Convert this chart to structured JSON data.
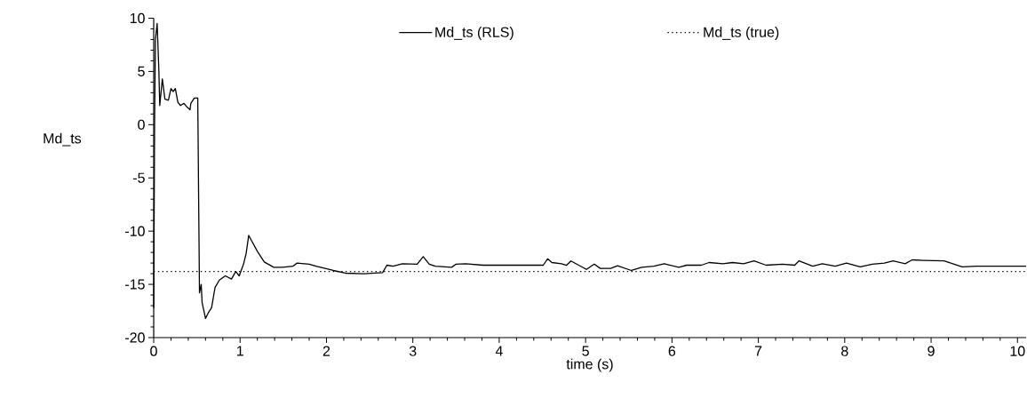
{
  "chart_data": {
    "type": "line",
    "xlabel": "time (s)",
    "ylabel": "Md_ts",
    "xlim": [
      0,
      10.1
    ],
    "ylim": [
      -20,
      10
    ],
    "xticks": [
      0,
      1,
      2,
      3,
      4,
      5,
      6,
      7,
      8,
      9,
      10
    ],
    "yticks": [
      -20,
      -15,
      -10,
      -5,
      0,
      5,
      10
    ],
    "grid": false,
    "legend": "top",
    "marker": "none",
    "series": [
      {
        "name": "Md_ts (RLS)",
        "color": "#000000",
        "line_style": "solid",
        "x": [
          0,
          0.01,
          0.02,
          0.04,
          0.06,
          0.07,
          0.1,
          0.13,
          0.17,
          0.2,
          0.225,
          0.25,
          0.28,
          0.31,
          0.35,
          0.38,
          0.42,
          0.43,
          0.47,
          0.51,
          0.53,
          0.55,
          0.56,
          0.6,
          0.63,
          0.67,
          0.71,
          0.76,
          0.83,
          0.9,
          0.95,
          0.99,
          1.04,
          1.07,
          1.1,
          1.14,
          1.2,
          1.28,
          1.39,
          1.49,
          1.61,
          1.66,
          1.8,
          1.88,
          2.08,
          2.22,
          2.43,
          2.65,
          2.7,
          2.77,
          2.88,
          3.05,
          3.12,
          3.19,
          3.26,
          3.45,
          3.5,
          3.61,
          3.81,
          4.16,
          4.51,
          4.56,
          4.61,
          4.72,
          4.78,
          4.83,
          5.01,
          5.1,
          5.17,
          5.29,
          5.37,
          5.53,
          5.65,
          5.79,
          5.91,
          6.08,
          6.17,
          6.34,
          6.43,
          6.59,
          6.7,
          6.83,
          6.95,
          7.09,
          7.28,
          7.42,
          7.47,
          7.63,
          7.74,
          7.89,
          8.02,
          8.18,
          8.32,
          8.46,
          8.56,
          8.7,
          8.78,
          8.91,
          9.15,
          9.36,
          9.53,
          10.1
        ],
        "values": [
          -17.2,
          0,
          8,
          9.5,
          5,
          1.8,
          4.3,
          2.4,
          2.3,
          3.4,
          3.1,
          3.4,
          2.1,
          1.8,
          2.0,
          1.7,
          1.4,
          2.0,
          2.5,
          2.5,
          -15.8,
          -15,
          -16.7,
          -18.2,
          -17.7,
          -17.2,
          -15.3,
          -14.6,
          -14.2,
          -14.5,
          -13.8,
          -14.2,
          -13.1,
          -12.1,
          -10.4,
          -11.0,
          -11.9,
          -12.9,
          -13.4,
          -13.4,
          -13.3,
          -13.0,
          -13.1,
          -13.3,
          -13.7,
          -13.95,
          -14.0,
          -13.9,
          -13.2,
          -13.3,
          -13.06,
          -13.1,
          -12.4,
          -13.1,
          -13.3,
          -13.4,
          -13.1,
          -13.06,
          -13.2,
          -13.2,
          -13.2,
          -12.6,
          -12.95,
          -13.06,
          -13.2,
          -12.8,
          -13.6,
          -13.1,
          -13.5,
          -13.5,
          -13.25,
          -13.7,
          -13.4,
          -13.3,
          -13.06,
          -13.4,
          -13.2,
          -13.2,
          -12.95,
          -13.06,
          -12.95,
          -13.06,
          -12.8,
          -13.2,
          -13.1,
          -13.2,
          -12.8,
          -13.3,
          -13.06,
          -13.3,
          -13.0,
          -13.35,
          -13.1,
          -13.0,
          -12.8,
          -13.06,
          -12.7,
          -12.75,
          -12.8,
          -13.35,
          -13.3,
          -13.3
        ]
      },
      {
        "name": "Md_ts (true)",
        "color": "#000000",
        "line_style": "dotted",
        "x": [
          0,
          10.1
        ],
        "values": [
          -13.8,
          -13.8
        ]
      }
    ]
  }
}
